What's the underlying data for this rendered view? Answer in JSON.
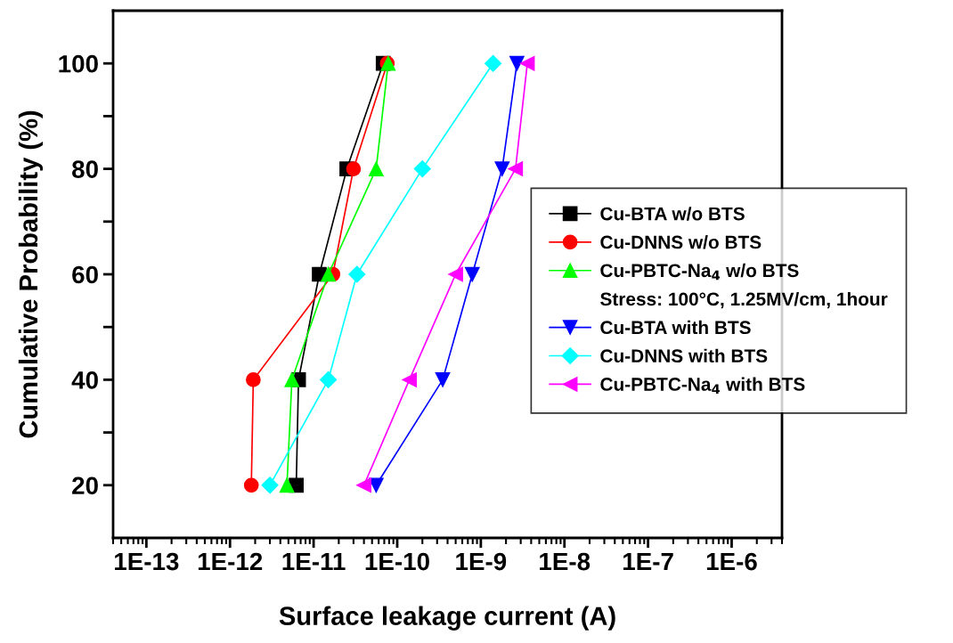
{
  "chart_data": {
    "type": "line",
    "xlabel": "Surface leakage current (A)",
    "ylabel": "Cumulative Probability (%)",
    "log": "x",
    "xlim": [
      4e-14,
      4e-06
    ],
    "xticks": [
      {
        "value": 1e-13,
        "label": "1E-13"
      },
      {
        "value": 1e-12,
        "label": "1E-12"
      },
      {
        "value": 1e-11,
        "label": "1E-11"
      },
      {
        "value": 1e-10,
        "label": "1E-10"
      },
      {
        "value": 1e-09,
        "label": "1E-9"
      },
      {
        "value": 1e-08,
        "label": "1E-8"
      },
      {
        "value": 1e-07,
        "label": "1E-7"
      },
      {
        "value": 1e-06,
        "label": "1E-6"
      }
    ],
    "ylim": [
      10,
      110
    ],
    "yticks": [
      20,
      {
        "value": 30,
        "label": null
      },
      40,
      {
        "value": 50,
        "label": null
      },
      60,
      {
        "value": 70,
        "label": null
      },
      80,
      {
        "value": 90,
        "label": null
      },
      100
    ],
    "grid": false,
    "legend": "right",
    "line_style": "solid",
    "annotations": [
      "Stress: 100°C, 1.25MV/cm, 1hour"
    ],
    "series": [
      {
        "name": "Cu-BTA w/o BTS",
        "color": "#000000",
        "marker": "square",
        "values": [
          20,
          40,
          60,
          80,
          100
        ],
        "x": [
          6.2e-12,
          6.6e-12,
          1.17e-11,
          2.5e-11,
          6.8e-11
        ]
      },
      {
        "name": "Cu-DNNS w/o BTS",
        "color": "#ff0000",
        "marker": "circle",
        "values": [
          20,
          40,
          60,
          80,
          100
        ],
        "x": [
          1.8e-12,
          1.9e-12,
          1.7e-11,
          3e-11,
          7.6e-11
        ]
      },
      {
        "name": "Cu-PBTC-Na$_{4}$ w/o BTS",
        "color": "#00ff00",
        "marker": "triangle",
        "values": [
          20,
          40,
          60,
          80,
          100
        ],
        "x": [
          4.8e-12,
          5.5e-12,
          1.5e-11,
          5.6e-11,
          7.8e-11
        ]
      },
      {
        "name": "Cu-BTA with BTS",
        "color": "#0000ff",
        "marker": "triangle_down",
        "values": [
          20,
          40,
          60,
          80,
          100
        ],
        "x": [
          5.6e-11,
          3.5e-10,
          7.9e-10,
          1.8e-09,
          2.7e-09
        ]
      },
      {
        "name": "Cu-DNNS with BTS",
        "color": "#00ffff",
        "marker": "diamond",
        "values": [
          20,
          40,
          60,
          80,
          100
        ],
        "x": [
          3e-12,
          1.5e-11,
          3.3e-11,
          2e-10,
          1.4e-09
        ]
      },
      {
        "name": "Cu-PBTC-Na$_{4}$ with BTS",
        "color": "#ff00ff",
        "marker": "triangle_left",
        "values": [
          20,
          40,
          60,
          80,
          100
        ],
        "x": [
          4e-11,
          1.4e-10,
          5e-10,
          2.6e-09,
          3.6e-09
        ]
      }
    ]
  }
}
